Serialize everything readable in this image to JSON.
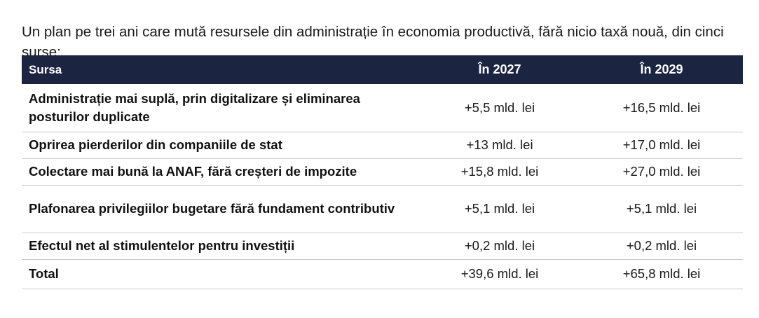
{
  "intro": "Un plan pe trei ani care mută resursele din administrație în economia productivă, fără nicio taxă nouă, din cinci surse:",
  "table": {
    "headers": {
      "source": "Sursa",
      "y2027": "În 2027",
      "y2029": "În 2029"
    },
    "rows": [
      {
        "source": "Administrație mai suplă, prin digitalizare și eliminarea posturilor duplicate",
        "y2027": "+5,5 mld. lei",
        "y2029": "+16,5 mld. lei"
      },
      {
        "source": "Oprirea pierderilor din companiile de stat",
        "y2027": "+13 mld. lei",
        "y2029": "+17,0 mld. lei"
      },
      {
        "source": "Colectare mai bună la ANAF, fără creșteri de impozite",
        "y2027": "+15,8 mld. lei",
        "y2029": "+27,0 mld. lei"
      },
      {
        "source": "Plafonarea privilegiilor bugetare fără fundament contributiv",
        "y2027": "+5,1 mld. lei",
        "y2029": "+5,1 mld. lei"
      },
      {
        "source": "Efectul net al stimulentelor pentru investiții",
        "y2027": "+0,2 mld. lei",
        "y2029": "+0,2 mld. lei"
      },
      {
        "source": "Total",
        "y2027": "+39,6 mld. lei",
        "y2029": "+65,8 mld. lei"
      }
    ]
  },
  "colors": {
    "header_bg": "#1b2440",
    "header_text": "#ffffff",
    "row_divider": "#c9c9c9"
  }
}
